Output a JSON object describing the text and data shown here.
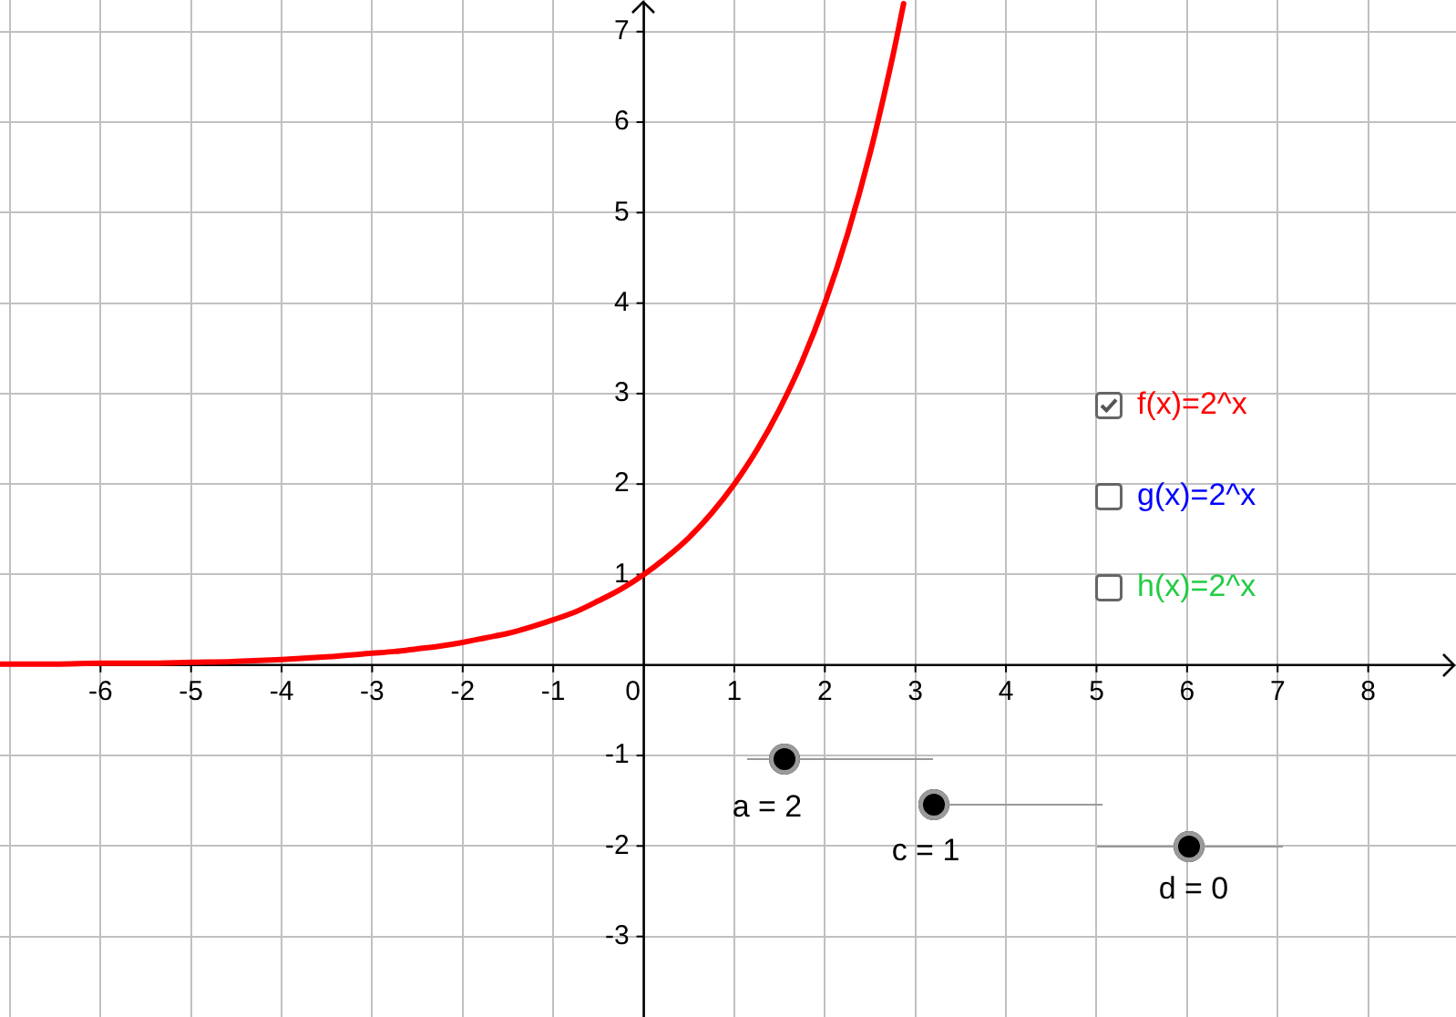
{
  "chart_data": {
    "type": "line",
    "x": [
      -7.1,
      -7,
      -6.5,
      -6,
      -5.5,
      -5,
      -4.5,
      -4,
      -3.5,
      -3,
      -2.75,
      -2.5,
      -2.25,
      -2,
      -1.75,
      -1.5,
      -1.25,
      -1,
      -0.75,
      -0.5,
      -0.25,
      0,
      0.25,
      0.5,
      0.75,
      1,
      1.25,
      1.5,
      1.75,
      2,
      2.25,
      2.5,
      2.75,
      2.87
    ],
    "series": [
      {
        "name": "f(x)=2^x",
        "color": "#ff0000",
        "values": [
          0.01,
          0.01,
          0.01,
          0.02,
          0.02,
          0.03,
          0.04,
          0.06,
          0.09,
          0.13,
          0.15,
          0.18,
          0.21,
          0.25,
          0.3,
          0.35,
          0.42,
          0.5,
          0.59,
          0.71,
          0.84,
          1,
          1.19,
          1.41,
          1.68,
          2,
          2.38,
          2.83,
          3.36,
          4,
          4.76,
          5.66,
          6.73,
          7.31
        ]
      }
    ],
    "xlim": [
      -7.11,
      8.97
    ],
    "ylim": [
      -3.89,
      7.35
    ],
    "xticks": [
      {
        "value": -7,
        "label": null
      },
      -6,
      -5,
      -4,
      -3,
      -2,
      -1,
      0,
      1,
      2,
      3,
      4,
      5,
      6,
      7,
      8
    ],
    "yticks": [
      -3,
      -2,
      -1,
      {
        "value": 0,
        "label": null
      },
      1,
      2,
      3,
      4,
      5,
      6,
      7
    ],
    "grid": true,
    "legend": "right",
    "marker": "none",
    "line_style": "solid",
    "annotations": [
      "g(x)=2^x",
      "h(x)=2^x",
      "a = 2",
      "c = 1",
      "d = 0"
    ]
  }
}
